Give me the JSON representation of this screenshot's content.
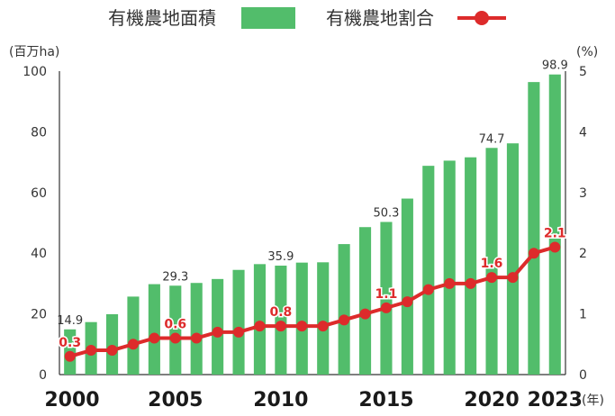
{
  "legend": {
    "bar_label": "有機農地面積",
    "line_label": "有機農地割合"
  },
  "chart_data": {
    "type": "bar",
    "title": "",
    "x": [
      2000,
      2001,
      2002,
      2003,
      2004,
      2005,
      2006,
      2007,
      2008,
      2009,
      2010,
      2011,
      2012,
      2013,
      2014,
      2015,
      2016,
      2017,
      2018,
      2019,
      2020,
      2021,
      2022,
      2023
    ],
    "x_tick_labels": [
      "2000",
      "2005",
      "2010",
      "2015",
      "2020",
      "2023"
    ],
    "x_tick_years": [
      2000,
      2005,
      2010,
      2015,
      2020,
      2023
    ],
    "x_unit": "(年)",
    "series": [
      {
        "name": "有機農地面積",
        "type": "bar",
        "axis": "left",
        "color": "#52bd6b",
        "values": [
          14.9,
          17.3,
          19.9,
          25.7,
          29.8,
          29.3,
          30.2,
          31.5,
          34.5,
          36.4,
          35.9,
          36.9,
          37.0,
          43.0,
          48.6,
          50.3,
          58.0,
          68.8,
          70.5,
          71.6,
          74.7,
          76.2,
          96.4,
          98.9
        ],
        "labels": [
          {
            "x": 2000,
            "text": "14.9"
          },
          {
            "x": 2005,
            "text": "29.3"
          },
          {
            "x": 2010,
            "text": "35.9"
          },
          {
            "x": 2015,
            "text": "50.3"
          },
          {
            "x": 2020,
            "text": "74.7"
          },
          {
            "x": 2023,
            "text": "98.9"
          }
        ]
      },
      {
        "name": "有機農地割合",
        "type": "line",
        "axis": "right",
        "color": "#dd2b2b",
        "values": [
          0.3,
          0.4,
          0.4,
          0.5,
          0.6,
          0.6,
          0.6,
          0.7,
          0.7,
          0.8,
          0.8,
          0.8,
          0.8,
          0.9,
          1.0,
          1.1,
          1.2,
          1.4,
          1.5,
          1.5,
          1.6,
          1.6,
          2.0,
          2.1
        ],
        "labels": [
          {
            "x": 2000,
            "text": "0.3"
          },
          {
            "x": 2005,
            "text": "0.6"
          },
          {
            "x": 2010,
            "text": "0.8"
          },
          {
            "x": 2015,
            "text": "1.1"
          },
          {
            "x": 2020,
            "text": "1.6"
          },
          {
            "x": 2023,
            "text": "2.1"
          }
        ]
      }
    ],
    "ylabel_left": "(百万ha)",
    "ylim_left": [
      0,
      100
    ],
    "yticks_left": [
      0,
      20,
      40,
      60,
      80,
      100
    ],
    "ylabel_right": "(%)",
    "ylim_right": [
      0,
      5
    ],
    "yticks_right": [
      0,
      1,
      2,
      3,
      4,
      5
    ],
    "grid": false,
    "legend_position": "top"
  }
}
